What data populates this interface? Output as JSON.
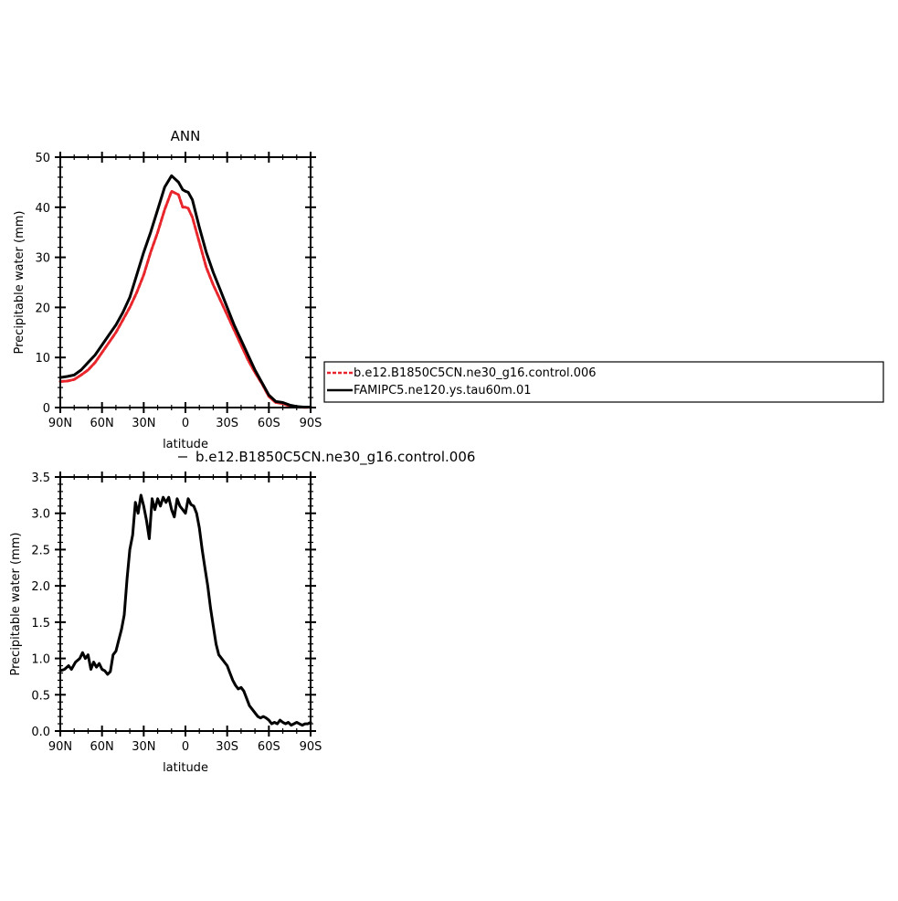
{
  "chart_data": [
    {
      "type": "line",
      "title": "ANN",
      "xlabel": "latitude",
      "ylabel": "Precipitable water (mm)",
      "xlim": [
        90,
        -90
      ],
      "ylim": [
        0,
        50
      ],
      "x_tick_values": [
        90,
        60,
        30,
        0,
        -30,
        -60,
        -90
      ],
      "x_tick_labels": [
        "90N",
        "60N",
        "30N",
        "0",
        "30S",
        "60S",
        "90S"
      ],
      "y_tick_values": [
        0,
        10,
        20,
        30,
        40,
        50
      ],
      "y_tick_labels": [
        "0",
        "10",
        "20",
        "30",
        "40",
        "50"
      ],
      "grid": false,
      "legend_position": "right",
      "series": [
        {
          "name": "b.e12.B1850C5CN.ne30_g16.control.006",
          "color": "#e8262b",
          "style": "dashed",
          "x": [
            90,
            85,
            80,
            75,
            70,
            65,
            60,
            55,
            50,
            45,
            40,
            35,
            30,
            25,
            20,
            15,
            10,
            5,
            2,
            0,
            -2,
            -5,
            -10,
            -15,
            -20,
            -25,
            -30,
            -35,
            -40,
            -45,
            -50,
            -55,
            -60,
            -65,
            -70,
            -75,
            -80,
            -85,
            -90
          ],
          "y": [
            5.2,
            5.3,
            5.6,
            6.5,
            7.5,
            9.0,
            11.0,
            13.0,
            15.0,
            17.5,
            20.0,
            23.0,
            26.5,
            31.0,
            35.0,
            39.5,
            43.2,
            42.5,
            40.0,
            40.0,
            39.8,
            38.0,
            33.0,
            28.0,
            24.5,
            21.5,
            18.5,
            15.5,
            12.5,
            9.5,
            7.0,
            4.8,
            2.2,
            1.0,
            0.8,
            0.3,
            0.1,
            0.05,
            0.05
          ]
        },
        {
          "name": "FAMIPC5.ne120.ys.tau60m.01",
          "color": "#000000",
          "style": "solid",
          "x": [
            90,
            85,
            80,
            75,
            70,
            65,
            60,
            55,
            50,
            45,
            40,
            35,
            30,
            25,
            20,
            15,
            10,
            5,
            2,
            0,
            -2,
            -5,
            -10,
            -15,
            -20,
            -25,
            -30,
            -35,
            -40,
            -45,
            -50,
            -55,
            -60,
            -65,
            -70,
            -75,
            -80,
            -85,
            -90
          ],
          "y": [
            6.0,
            6.2,
            6.5,
            7.5,
            9.0,
            10.5,
            12.5,
            14.5,
            16.5,
            19.0,
            22.0,
            26.5,
            31.0,
            35.0,
            39.5,
            44.0,
            46.3,
            45.0,
            43.5,
            43.2,
            43.0,
            41.5,
            36.0,
            31.0,
            27.0,
            23.5,
            20.0,
            16.5,
            13.5,
            10.5,
            7.5,
            5.0,
            2.5,
            1.2,
            1.0,
            0.5,
            0.2,
            0.1,
            0.1
          ]
        }
      ]
    },
    {
      "type": "line",
      "title": "b.e12.B1850C5CN.ne30_g16.control.006",
      "xlabel": "latitude",
      "ylabel": "Precipitable water (mm)",
      "xlim": [
        90,
        -90
      ],
      "ylim": [
        0,
        3.5
      ],
      "x_tick_values": [
        90,
        60,
        30,
        0,
        -30,
        -60,
        -90
      ],
      "x_tick_labels": [
        "90N",
        "60N",
        "30N",
        "0",
        "30S",
        "60S",
        "90S"
      ],
      "y_tick_values": [
        0,
        0.5,
        1.0,
        1.5,
        2.0,
        2.5,
        3.0,
        3.5
      ],
      "y_tick_labels": [
        "0.0",
        "0.5",
        "1.0",
        "1.5",
        "2.0",
        "2.5",
        "3.0",
        "3.5"
      ],
      "grid": false,
      "series": [
        {
          "color": "#000000",
          "style": "solid",
          "x": [
            90,
            87,
            84,
            82,
            79,
            76,
            74,
            72,
            70,
            68,
            66,
            64,
            62,
            60,
            58,
            56,
            54,
            52,
            50,
            48,
            46,
            44,
            42,
            40,
            38,
            36,
            34,
            32,
            30,
            28,
            26,
            24,
            22,
            20,
            18,
            16,
            14,
            12,
            10,
            8,
            6,
            4,
            2,
            0,
            -2,
            -4,
            -6,
            -8,
            -10,
            -12,
            -14,
            -16,
            -18,
            -20,
            -22,
            -24,
            -26,
            -28,
            -30,
            -32,
            -34,
            -36,
            -38,
            -40,
            -42,
            -44,
            -46,
            -48,
            -50,
            -52,
            -54,
            -56,
            -58,
            -60,
            -62,
            -64,
            -66,
            -68,
            -70,
            -72,
            -74,
            -76,
            -78,
            -80,
            -82,
            -84,
            -86,
            -88,
            -90
          ],
          "y": [
            0.83,
            0.85,
            0.9,
            0.85,
            0.95,
            1.0,
            1.08,
            1.0,
            1.05,
            0.85,
            0.95,
            0.88,
            0.93,
            0.85,
            0.83,
            0.78,
            0.82,
            1.05,
            1.1,
            1.25,
            1.4,
            1.6,
            2.1,
            2.5,
            2.7,
            3.15,
            3.0,
            3.25,
            3.1,
            2.9,
            2.65,
            3.2,
            3.05,
            3.2,
            3.1,
            3.22,
            3.15,
            3.22,
            3.05,
            2.95,
            3.2,
            3.1,
            3.05,
            3.0,
            3.2,
            3.12,
            3.1,
            3.0,
            2.8,
            2.5,
            2.25,
            2.0,
            1.7,
            1.45,
            1.2,
            1.05,
            1.0,
            0.95,
            0.9,
            0.8,
            0.7,
            0.63,
            0.58,
            0.6,
            0.55,
            0.45,
            0.35,
            0.3,
            0.25,
            0.2,
            0.18,
            0.2,
            0.18,
            0.15,
            0.1,
            0.12,
            0.1,
            0.15,
            0.12,
            0.1,
            0.12,
            0.08,
            0.1,
            0.12,
            0.1,
            0.08,
            0.1,
            0.1,
            0.12
          ]
        }
      ]
    }
  ]
}
